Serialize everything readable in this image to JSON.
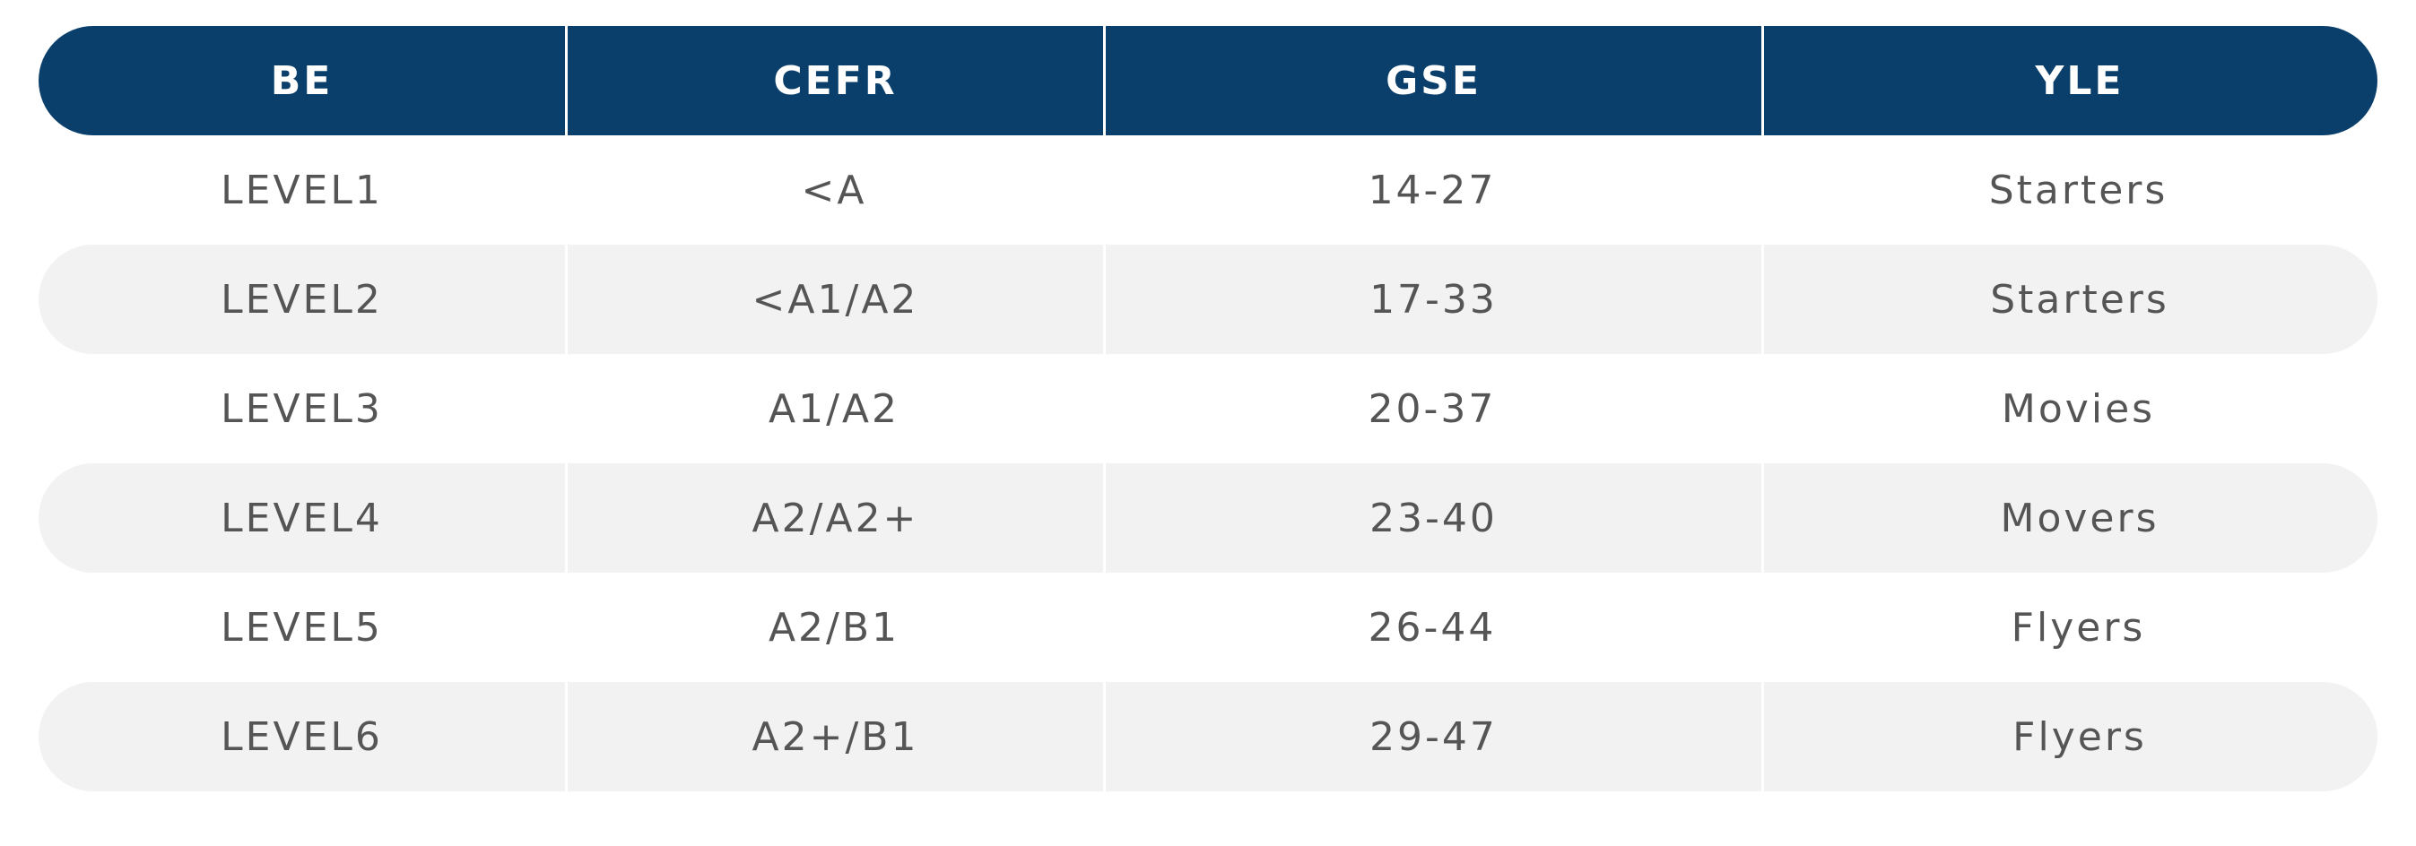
{
  "table": {
    "headers": [
      "BE",
      "CEFR",
      "GSE",
      "YLE"
    ],
    "rows": [
      [
        "LEVEL1",
        "<A",
        "14-27",
        "Starters"
      ],
      [
        "LEVEL2",
        "<A1/A2",
        "17-33",
        "Starters"
      ],
      [
        "LEVEL3",
        "A1/A2",
        "20-37",
        "Movies"
      ],
      [
        "LEVEL4",
        "A2/A2+",
        "23-40",
        "Movers"
      ],
      [
        "LEVEL5",
        "A2/B1",
        "26-44",
        "Flyers"
      ],
      [
        "LEVEL6",
        "A2+/B1",
        "29-47",
        "Flyers"
      ]
    ]
  },
  "colors": {
    "header_background": "#0a3f6b",
    "header_text": "#ffffff",
    "shaded_row_background": "#f2f2f2",
    "body_text": "#555555"
  }
}
